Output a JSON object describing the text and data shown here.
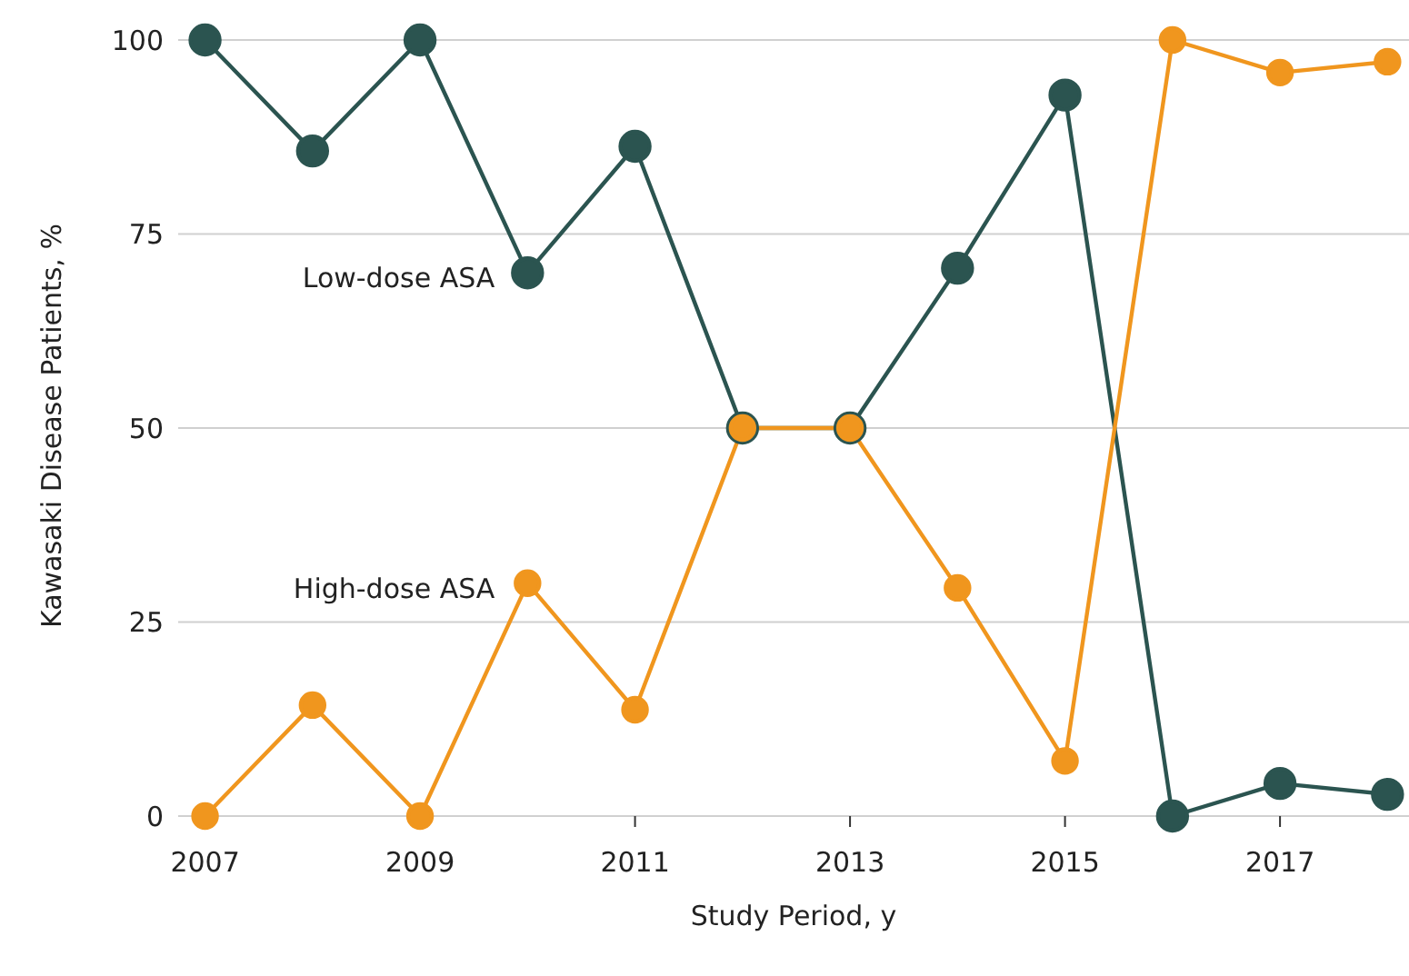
{
  "chart_data": {
    "type": "line",
    "xlabel": "Study Period, y",
    "ylabel": "Kawasaki Disease Patients, %",
    "x": [
      2007,
      2008,
      2009,
      2010,
      2011,
      2012,
      2013,
      2014,
      2015,
      2016,
      2017,
      2018
    ],
    "series": [
      {
        "name": "Low-dose ASA",
        "color": "#2b5450",
        "values": [
          100,
          85.7,
          100,
          70,
          86.3,
          50,
          50,
          70.6,
          92.9,
          0,
          4.2,
          2.8
        ]
      },
      {
        "name": "High-dose ASA",
        "color": "#f0961e",
        "values": [
          0,
          14.3,
          0,
          30,
          13.7,
          50,
          50,
          29.4,
          7.1,
          100,
          95.8,
          97.2
        ]
      }
    ],
    "xlim": [
      2006.75,
      2018.2
    ],
    "xticks": [
      2007,
      2009,
      2011,
      2013,
      2015,
      2017
    ],
    "ylim": [
      0,
      100
    ],
    "yticks": [
      0,
      25,
      50,
      75,
      100
    ],
    "grid": "y",
    "marker": "circle",
    "line_style": "solid"
  }
}
